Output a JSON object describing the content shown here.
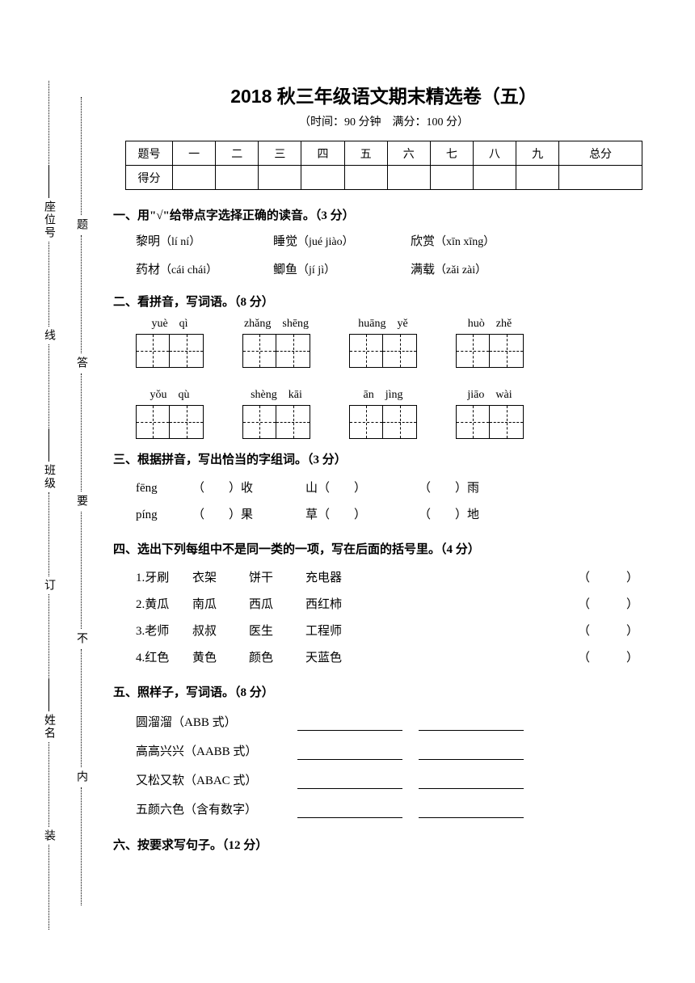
{
  "title": "2018 秋三年级语文期末精选卷（五）",
  "subtitle": "（时间：90 分钟　满分：100 分）",
  "score_headers": [
    "题号",
    "一",
    "二",
    "三",
    "四",
    "五",
    "六",
    "七",
    "八",
    "九",
    "总分"
  ],
  "score_row_label": "得分",
  "gutter_inner": [
    "姓名",
    "班级",
    "座位号"
  ],
  "gutter_inner_chars": [
    "装",
    "订",
    "线"
  ],
  "gutter_outer": [
    "内",
    "不",
    "要",
    "答",
    "题"
  ],
  "sections": {
    "s1": {
      "head": "一、用\"√\"给带点字选择正确的读音。（3 分）",
      "items": [
        [
          {
            "word": "黎明",
            "dot": 0,
            "py": "（lí  ní）"
          },
          {
            "word": "睡觉",
            "dot": 1,
            "py": "（jué  jiào）"
          },
          {
            "word": "欣赏",
            "dot": 0,
            "py": "（xīn  xīng）"
          }
        ],
        [
          {
            "word": "药材",
            "dot": 1,
            "py": "（cái  chái）"
          },
          {
            "word": "鲫鱼",
            "dot": 0,
            "py": "（jí  jì）"
          },
          {
            "word": "满载",
            "dot": 1,
            "py": "（zǎi  zài）"
          }
        ]
      ]
    },
    "s2": {
      "head": "二、看拼音，写词语。（8 分）",
      "row1": [
        [
          "yuè",
          "qì"
        ],
        [
          "zhǎng",
          "shēng"
        ],
        [
          "huāng",
          "yě"
        ],
        [
          "huò",
          "zhě"
        ]
      ],
      "row2": [
        [
          "yǒu",
          "qù"
        ],
        [
          "shèng",
          "kāi"
        ],
        [
          "ān",
          "jìng"
        ],
        [
          "jiāo",
          "wài"
        ]
      ]
    },
    "s3": {
      "head": "三、根据拼音，写出恰当的字组词。（3 分）",
      "lines": [
        {
          "py": "fēng",
          "parts": [
            "（　　）收",
            "山（　　）",
            "（　　）雨"
          ]
        },
        {
          "py": "píng",
          "parts": [
            "（　　）果",
            "草（　　）",
            "（　　）地"
          ]
        }
      ]
    },
    "s4": {
      "head": "四、选出下列每组中不是同一类的一项，写在后面的括号里。（4 分）",
      "rows": [
        [
          "1.牙刷",
          "衣架",
          "饼干",
          "充电器"
        ],
        [
          "2.黄瓜",
          "南瓜",
          "西瓜",
          "西红柿"
        ],
        [
          "3.老师",
          "叔叔",
          "医生",
          "工程师"
        ],
        [
          "4.红色",
          "黄色",
          "颜色",
          "天蓝色"
        ]
      ]
    },
    "s5": {
      "head": "五、照样子，写词语。（8 分）",
      "rows": [
        "圆溜溜（ABB 式）",
        "高高兴兴（AABB 式）",
        "又松又软（ABAC 式）",
        "五颜六色（含有数字）"
      ]
    },
    "s6": {
      "head": "六、按要求写句子。（12 分）"
    }
  }
}
